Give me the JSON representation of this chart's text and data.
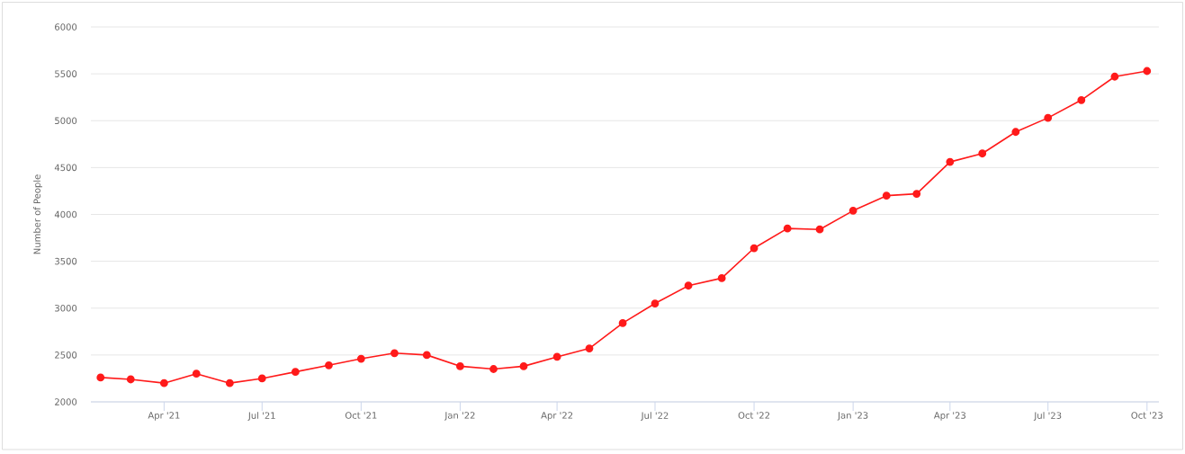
{
  "chart_data": {
    "type": "line",
    "ylabel": "Number of People",
    "x": [
      "2021-02",
      "2021-03",
      "2021-04",
      "2021-05",
      "2021-06",
      "2021-07",
      "2021-08",
      "2021-09",
      "2021-10",
      "2021-11",
      "2021-12",
      "2022-01",
      "2022-02",
      "2022-03",
      "2022-04",
      "2022-05",
      "2022-06",
      "2022-07",
      "2022-08",
      "2022-09",
      "2022-10",
      "2022-11",
      "2022-12",
      "2023-01",
      "2023-02",
      "2023-03",
      "2023-04",
      "2023-05",
      "2023-06",
      "2023-07",
      "2023-08",
      "2023-09",
      "2023-10"
    ],
    "values": [
      2260,
      2240,
      2200,
      2300,
      2200,
      2250,
      2320,
      2390,
      2460,
      2520,
      2500,
      2380,
      2350,
      2380,
      2480,
      2570,
      2840,
      3050,
      3240,
      3320,
      3640,
      3850,
      3840,
      4040,
      4200,
      4220,
      4560,
      4650,
      4880,
      5030,
      5220,
      5470,
      5530
    ],
    "color": "#ff1a1a",
    "xlim": [
      "2021-01-23",
      "2023-10-12"
    ],
    "ylim": [
      2000,
      6000
    ],
    "xticks": [
      {
        "value": "2021-04",
        "label": "Apr '21"
      },
      {
        "value": "2021-07",
        "label": "Jul '21"
      },
      {
        "value": "2021-10",
        "label": "Oct '21"
      },
      {
        "value": "2022-01",
        "label": "Jan '22"
      },
      {
        "value": "2022-04",
        "label": "Apr '22"
      },
      {
        "value": "2022-07",
        "label": "Jul '22"
      },
      {
        "value": "2022-10",
        "label": "Oct '22"
      },
      {
        "value": "2023-01",
        "label": "Jan '23"
      },
      {
        "value": "2023-04",
        "label": "Apr '23"
      },
      {
        "value": "2023-07",
        "label": "Jul '23"
      },
      {
        "value": "2023-10",
        "label": "Oct '23"
      }
    ],
    "yticks": [
      2000,
      2500,
      3000,
      3500,
      4000,
      4500,
      5000,
      5500,
      6000
    ],
    "grid": "y",
    "marker": "circle",
    "line_style": "solid"
  }
}
